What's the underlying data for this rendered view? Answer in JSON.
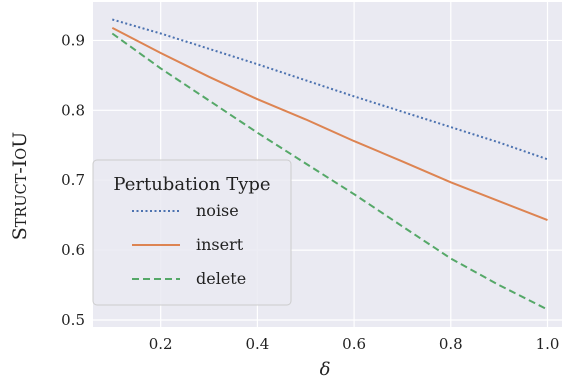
{
  "chart_data": {
    "type": "line",
    "xlabel": "δ",
    "ylabel": "Struct-IoU",
    "xlim": [
      0.06,
      1.03
    ],
    "ylim": [
      0.49,
      0.955
    ],
    "xticks": [
      0.2,
      0.4,
      0.6,
      0.8,
      1.0
    ],
    "xtick_labels": [
      "0.2",
      "0.4",
      "0.6",
      "0.8",
      "1.0"
    ],
    "yticks": [
      0.5,
      0.6,
      0.7,
      0.8,
      0.9
    ],
    "ytick_labels": [
      "0.5",
      "0.6",
      "0.7",
      "0.8",
      "0.9"
    ],
    "grid": true,
    "background": "#eaeaf2",
    "legend": {
      "title": "Pertubation Type",
      "placement": "lower-left"
    },
    "series": [
      {
        "name": "noise",
        "color": "#4c72b0",
        "style": "dotted",
        "x": [
          0.1,
          0.2,
          0.3,
          0.4,
          0.5,
          0.6,
          0.7,
          0.8,
          0.9,
          1.0
        ],
        "y": [
          0.93,
          0.91,
          0.888,
          0.866,
          0.843,
          0.82,
          0.798,
          0.776,
          0.754,
          0.73
        ]
      },
      {
        "name": "insert",
        "color": "#dd8452",
        "style": "solid",
        "x": [
          0.1,
          0.2,
          0.3,
          0.4,
          0.5,
          0.6,
          0.7,
          0.8,
          0.9,
          1.0
        ],
        "y": [
          0.918,
          0.882,
          0.848,
          0.816,
          0.787,
          0.756,
          0.727,
          0.697,
          0.67,
          0.643
        ]
      },
      {
        "name": "delete",
        "color": "#55a868",
        "style": "dashed",
        "x": [
          0.1,
          0.2,
          0.3,
          0.4,
          0.5,
          0.6,
          0.7,
          0.8,
          0.9,
          1.0
        ],
        "y": [
          0.91,
          0.86,
          0.814,
          0.768,
          0.724,
          0.68,
          0.634,
          0.588,
          0.55,
          0.515
        ]
      }
    ]
  }
}
